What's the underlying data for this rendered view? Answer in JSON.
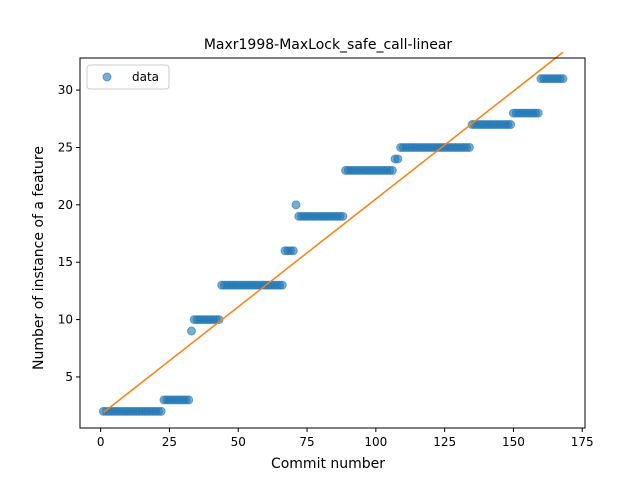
{
  "chart_data": {
    "type": "scatter",
    "title": "Maxr1998-MaxLock_safe_call-linear",
    "xlabel": "Commit number",
    "ylabel": "Number of instance of a feature",
    "xlim": [
      -7.5,
      176
    ],
    "ylim": [
      0.55,
      32.8
    ],
    "xticks": [
      0,
      25,
      50,
      75,
      100,
      125,
      150,
      175
    ],
    "yticks": [
      5,
      10,
      15,
      20,
      25,
      30
    ],
    "grid": false,
    "legend": {
      "position": "top-left",
      "entries": [
        "data"
      ]
    },
    "colors": {
      "data": "#1f77b4",
      "fit": "#ff7f0e"
    },
    "series": [
      {
        "name": "data",
        "kind": "scatter",
        "segments": [
          {
            "x_start": 1,
            "x_end": 22,
            "y": 2
          },
          {
            "x_start": 23,
            "x_end": 32,
            "y": 3
          },
          {
            "x_start": 33,
            "x_end": 33,
            "y": 9
          },
          {
            "x_start": 34,
            "x_end": 43,
            "y": 10
          },
          {
            "x_start": 44,
            "x_end": 66,
            "y": 13
          },
          {
            "x_start": 67,
            "x_end": 70,
            "y": 16
          },
          {
            "x_start": 71,
            "x_end": 71,
            "y": 20
          },
          {
            "x_start": 72,
            "x_end": 88,
            "y": 19
          },
          {
            "x_start": 89,
            "x_end": 106,
            "y": 23
          },
          {
            "x_start": 107,
            "x_end": 108,
            "y": 24
          },
          {
            "x_start": 109,
            "x_end": 134,
            "y": 25
          },
          {
            "x_start": 135,
            "x_end": 149,
            "y": 27
          },
          {
            "x_start": 150,
            "x_end": 159,
            "y": 28
          },
          {
            "x_start": 160,
            "x_end": 168,
            "y": 31
          }
        ]
      },
      {
        "name": "",
        "kind": "line",
        "x": [
          1,
          168
        ],
        "y": [
          1.9,
          33.3
        ]
      }
    ]
  }
}
